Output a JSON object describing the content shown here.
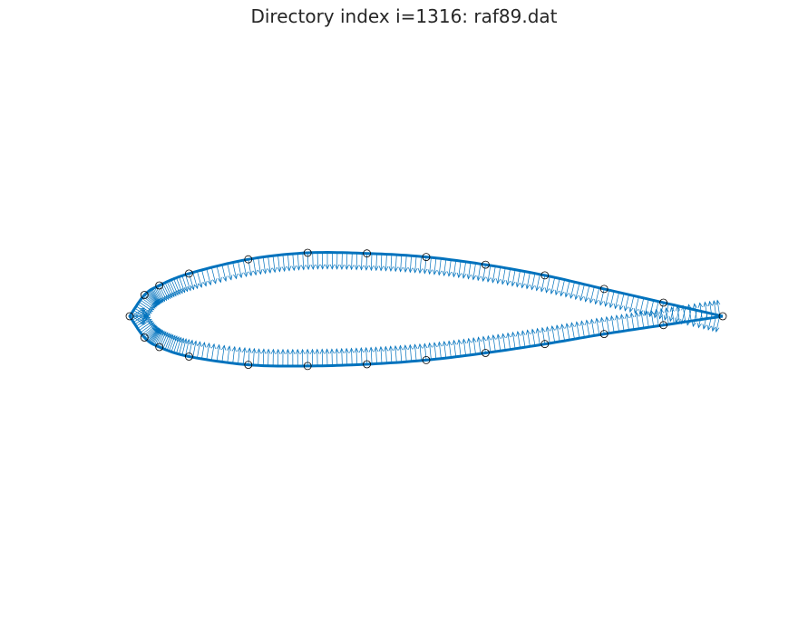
{
  "chart_data": {
    "type": "line",
    "title": "Directory index i=1316: raf89.dat",
    "xlabel": "",
    "ylabel": "",
    "axes_visible": false,
    "grid": false,
    "series": [
      {
        "style": "airfoil-outline",
        "color": "#0072BD",
        "points_upper": [
          [
            1.0,
            0.0
          ],
          [
            0.9,
            0.023
          ],
          [
            0.8,
            0.046
          ],
          [
            0.7,
            0.069
          ],
          [
            0.6,
            0.087
          ],
          [
            0.5,
            0.1
          ],
          [
            0.4,
            0.106
          ],
          [
            0.3,
            0.107
          ],
          [
            0.2,
            0.096
          ],
          [
            0.1,
            0.072
          ],
          [
            0.05,
            0.052
          ],
          [
            0.025,
            0.036
          ],
          [
            0.0,
            0.0
          ]
        ],
        "points_lower": [
          [
            0.0,
            0.0
          ],
          [
            0.025,
            -0.036
          ],
          [
            0.05,
            -0.052
          ],
          [
            0.1,
            -0.068
          ],
          [
            0.2,
            -0.082
          ],
          [
            0.3,
            -0.084
          ],
          [
            0.4,
            -0.081
          ],
          [
            0.5,
            -0.074
          ],
          [
            0.6,
            -0.062
          ],
          [
            0.7,
            -0.047
          ],
          [
            0.8,
            -0.03
          ],
          [
            0.9,
            -0.015
          ],
          [
            1.0,
            0.0
          ]
        ]
      },
      {
        "style": "surface-normals",
        "color": "#0072BD",
        "arrow_length": 0.028
      }
    ],
    "markers": {
      "style": "open-circle",
      "color": "#000000",
      "points": [
        [
          1.0,
          0.0
        ],
        [
          0.9,
          0.023
        ],
        [
          0.8,
          0.046
        ],
        [
          0.7,
          0.069
        ],
        [
          0.6,
          0.087
        ],
        [
          0.5,
          0.1
        ],
        [
          0.4,
          0.106
        ],
        [
          0.3,
          0.107
        ],
        [
          0.2,
          0.096
        ],
        [
          0.1,
          0.072
        ],
        [
          0.05,
          0.052
        ],
        [
          0.025,
          0.036
        ],
        [
          0.0,
          0.0
        ],
        [
          0.025,
          -0.036
        ],
        [
          0.05,
          -0.052
        ],
        [
          0.1,
          -0.068
        ],
        [
          0.2,
          -0.082
        ],
        [
          0.3,
          -0.084
        ],
        [
          0.4,
          -0.081
        ],
        [
          0.5,
          -0.074
        ],
        [
          0.6,
          -0.062
        ],
        [
          0.7,
          -0.047
        ],
        [
          0.8,
          -0.03
        ],
        [
          0.9,
          -0.015
        ]
      ]
    }
  }
}
